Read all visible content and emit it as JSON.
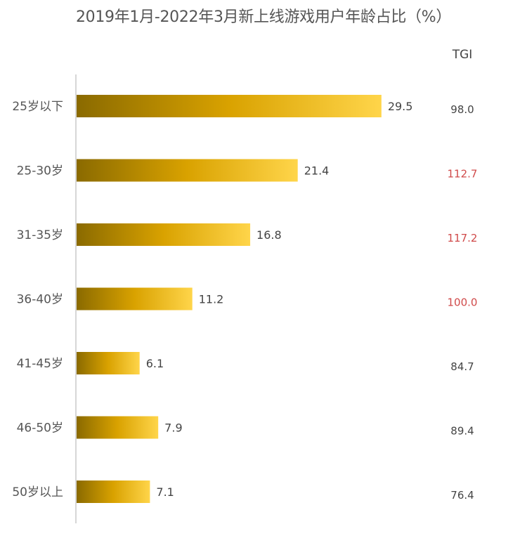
{
  "title": "2019年1月-2022年3月新上线游戏用户年龄占比（%）",
  "tgi_header": "TGI",
  "colors": {
    "bar_dark": "#8a6a00",
    "bar_mid": "#d9a200",
    "bar_light": "#ffd54a",
    "tgi_normal": "#444444",
    "tgi_high": "#d04a4a",
    "axis": "#c9c9c9"
  },
  "chart_data": {
    "type": "bar",
    "orientation": "horizontal",
    "categories": [
      "25岁以下",
      "25-30岁",
      "31-35岁",
      "36-40岁",
      "41-45岁",
      "46-50岁",
      "50岁以上"
    ],
    "values": [
      29.5,
      21.4,
      16.8,
      11.2,
      6.1,
      7.9,
      7.1
    ],
    "value_labels": [
      "29.5",
      "21.4",
      "16.8",
      "11.2",
      "6.1",
      "7.9",
      "7.1"
    ],
    "tgi": [
      "98.0",
      "112.7",
      "117.2",
      "100.0",
      "84.7",
      "89.4",
      "76.4"
    ],
    "tgi_highlight": [
      false,
      true,
      true,
      true,
      false,
      false,
      false
    ],
    "xlim": [
      0,
      34
    ],
    "grid": false,
    "legend": "none"
  }
}
